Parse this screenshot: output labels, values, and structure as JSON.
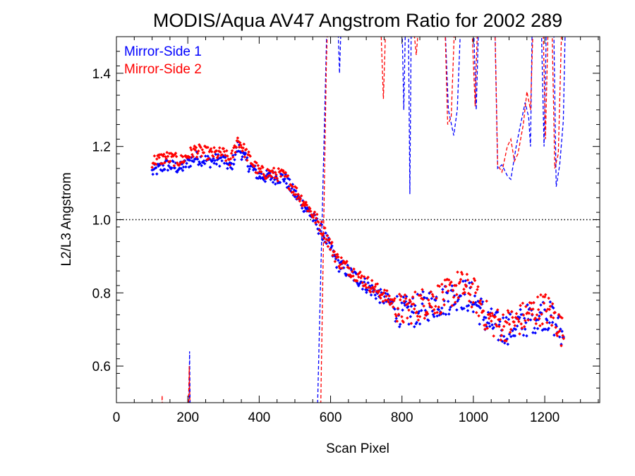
{
  "chart_data": {
    "type": "scatter",
    "title": "MODIS/Aqua AV47 Angstrom Ratio for 2002 289",
    "xlabel": "Scan Pixel",
    "ylabel": "L2/L3 Angstrom",
    "xlim": [
      0,
      1354
    ],
    "ylim": [
      0.5,
      1.5
    ],
    "x_ticks": [
      0,
      200,
      400,
      600,
      800,
      1000,
      1200
    ],
    "x_tick_labels": [
      "0",
      "200",
      "400",
      "600",
      "800",
      "1000",
      "1200"
    ],
    "y_ticks": [
      0.6,
      0.8,
      1.0,
      1.2,
      1.4
    ],
    "y_tick_labels": [
      "0.6",
      "0.8",
      "1.0",
      "1.2",
      "1.4"
    ],
    "reference_line": {
      "y": 1.0,
      "style": "dotted"
    },
    "legend": {
      "placement": "top-left"
    },
    "series": [
      {
        "name": "Mirror-Side 1",
        "color": "#0000ff",
        "trend": [
          [
            100,
            1.13
          ],
          [
            140,
            1.15
          ],
          [
            180,
            1.14
          ],
          [
            220,
            1.17
          ],
          [
            260,
            1.16
          ],
          [
            300,
            1.165
          ],
          [
            320,
            1.14
          ],
          [
            340,
            1.2
          ],
          [
            370,
            1.15
          ],
          [
            400,
            1.12
          ],
          [
            440,
            1.115
          ],
          [
            470,
            1.115
          ],
          [
            500,
            1.07
          ],
          [
            540,
            1.02
          ],
          [
            580,
            0.96
          ],
          [
            620,
            0.88
          ],
          [
            660,
            0.85
          ],
          [
            700,
            0.82
          ],
          [
            740,
            0.79
          ],
          [
            780,
            0.765
          ],
          [
            800,
            0.745
          ],
          [
            840,
            0.75
          ],
          [
            880,
            0.77
          ],
          [
            920,
            0.78
          ],
          [
            960,
            0.8
          ],
          [
            1000,
            0.785
          ],
          [
            1040,
            0.72
          ],
          [
            1080,
            0.7
          ],
          [
            1120,
            0.71
          ],
          [
            1160,
            0.73
          ],
          [
            1200,
            0.745
          ],
          [
            1230,
            0.72
          ],
          [
            1255,
            0.67
          ]
        ],
        "dashed_line": [
          [
            80,
            0.35
          ],
          [
            200,
            0.35
          ],
          [
            203,
            0.45
          ],
          [
            205,
            0.64
          ],
          [
            207,
            0.45
          ],
          [
            210,
            0.35
          ],
          [
            560,
            0.35
          ],
          [
            590,
            1.55
          ],
          [
            620,
            1.55
          ],
          [
            625,
            1.4
          ],
          [
            630,
            1.55
          ],
          [
            800,
            1.55
          ],
          [
            805,
            1.3
          ],
          [
            810,
            1.55
          ],
          [
            818,
            1.55
          ],
          [
            822,
            1.07
          ],
          [
            826,
            1.55
          ],
          [
            920,
            1.55
          ],
          [
            930,
            1.3
          ],
          [
            945,
            1.23
          ],
          [
            955,
            1.3
          ],
          [
            965,
            1.55
          ],
          [
            1000,
            1.55
          ],
          [
            1008,
            1.3
          ],
          [
            1015,
            1.55
          ],
          [
            1060,
            1.55
          ],
          [
            1068,
            1.14
          ],
          [
            1080,
            1.15
          ],
          [
            1095,
            1.12
          ],
          [
            1105,
            1.11
          ],
          [
            1120,
            1.2
          ],
          [
            1130,
            1.25
          ],
          [
            1145,
            1.32
          ],
          [
            1155,
            1.28
          ],
          [
            1160,
            1.2
          ],
          [
            1165,
            1.55
          ],
          [
            1190,
            1.55
          ],
          [
            1198,
            1.2
          ],
          [
            1205,
            1.55
          ],
          [
            1225,
            1.55
          ],
          [
            1232,
            1.09
          ],
          [
            1242,
            1.15
          ],
          [
            1252,
            1.27
          ],
          [
            1258,
            1.55
          ]
        ]
      },
      {
        "name": "Mirror-Side 2",
        "color": "#ff0000",
        "trend": [
          [
            100,
            1.16
          ],
          [
            140,
            1.17
          ],
          [
            180,
            1.16
          ],
          [
            220,
            1.19
          ],
          [
            260,
            1.18
          ],
          [
            300,
            1.18
          ],
          [
            320,
            1.16
          ],
          [
            340,
            1.22
          ],
          [
            370,
            1.17
          ],
          [
            400,
            1.13
          ],
          [
            440,
            1.125
          ],
          [
            470,
            1.12
          ],
          [
            500,
            1.08
          ],
          [
            540,
            1.03
          ],
          [
            580,
            0.97
          ],
          [
            620,
            0.89
          ],
          [
            660,
            0.86
          ],
          [
            700,
            0.83
          ],
          [
            740,
            0.8
          ],
          [
            780,
            0.77
          ],
          [
            800,
            0.75
          ],
          [
            840,
            0.765
          ],
          [
            880,
            0.78
          ],
          [
            920,
            0.79
          ],
          [
            960,
            0.82
          ],
          [
            1000,
            0.8
          ],
          [
            1040,
            0.73
          ],
          [
            1080,
            0.71
          ],
          [
            1120,
            0.72
          ],
          [
            1160,
            0.745
          ],
          [
            1200,
            0.76
          ],
          [
            1230,
            0.73
          ],
          [
            1255,
            0.68
          ]
        ],
        "dashed_line": [
          [
            80,
            0.35
          ],
          [
            125,
            0.35
          ],
          [
            128,
            0.52
          ],
          [
            131,
            0.35
          ],
          [
            200,
            0.35
          ],
          [
            202,
            0.5
          ],
          [
            204,
            0.6
          ],
          [
            206,
            0.5
          ],
          [
            210,
            0.35
          ],
          [
            570,
            0.35
          ],
          [
            588,
            1.42
          ],
          [
            592,
            1.55
          ],
          [
            740,
            1.55
          ],
          [
            748,
            1.33
          ],
          [
            755,
            1.55
          ],
          [
            830,
            1.55
          ],
          [
            840,
            1.45
          ],
          [
            848,
            1.55
          ],
          [
            920,
            1.55
          ],
          [
            928,
            1.26
          ],
          [
            938,
            1.28
          ],
          [
            948,
            1.55
          ],
          [
            995,
            1.55
          ],
          [
            1005,
            1.31
          ],
          [
            1012,
            1.55
          ],
          [
            1060,
            1.55
          ],
          [
            1068,
            1.15
          ],
          [
            1080,
            1.13
          ],
          [
            1095,
            1.2
          ],
          [
            1105,
            1.22
          ],
          [
            1115,
            1.16
          ],
          [
            1125,
            1.18
          ],
          [
            1140,
            1.26
          ],
          [
            1150,
            1.35
          ],
          [
            1160,
            1.3
          ],
          [
            1168,
            1.55
          ],
          [
            1195,
            1.55
          ],
          [
            1202,
            1.22
          ],
          [
            1210,
            1.55
          ],
          [
            1220,
            1.55
          ],
          [
            1228,
            1.14
          ],
          [
            1238,
            1.18
          ],
          [
            1248,
            1.55
          ]
        ]
      }
    ]
  }
}
